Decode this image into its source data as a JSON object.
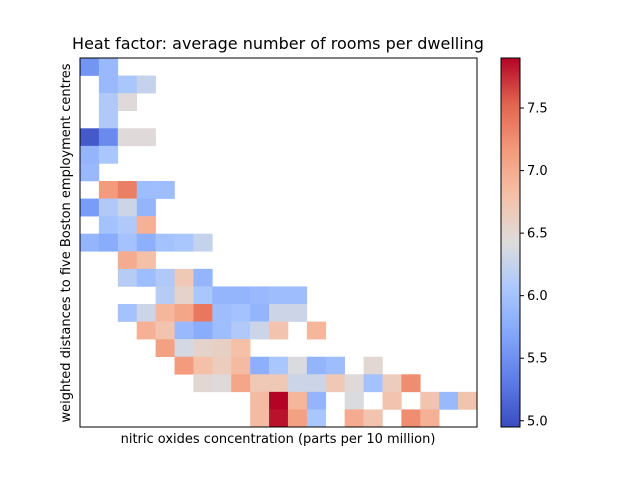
{
  "chart_data": {
    "type": "heatmap",
    "title": "Heat factor: average number of rooms per dwelling",
    "xlabel": "nitric oxides concentration (parts per 10 million)",
    "ylabel": "weighted distances to five Boston employment centres",
    "colormap": "coolwarm",
    "colorbar": {
      "vmin": 4.95,
      "vmax": 7.9,
      "ticks": [
        5.0,
        5.5,
        6.0,
        6.5,
        7.0,
        7.5
      ],
      "tick_labels": [
        "5.0",
        "5.5",
        "6.0",
        "6.5",
        "7.0",
        "7.5"
      ]
    },
    "grid_size": {
      "cols": 21,
      "rows": 21
    },
    "cells": [
      [
        0,
        0,
        5.55
      ],
      [
        1,
        0,
        5.9
      ],
      [
        1,
        1,
        5.9
      ],
      [
        2,
        1,
        6.05
      ],
      [
        3,
        1,
        6.25
      ],
      [
        1,
        2,
        6.1
      ],
      [
        2,
        2,
        6.45
      ],
      [
        1,
        3,
        6.1
      ],
      [
        0,
        4,
        5.05
      ],
      [
        1,
        4,
        5.45
      ],
      [
        2,
        4,
        6.45
      ],
      [
        3,
        4,
        6.45
      ],
      [
        0,
        5,
        5.85
      ],
      [
        1,
        5,
        6.05
      ],
      [
        0,
        6,
        5.9
      ],
      [
        1,
        7,
        7.15
      ],
      [
        2,
        7,
        7.35
      ],
      [
        3,
        7,
        5.95
      ],
      [
        4,
        7,
        5.95
      ],
      [
        0,
        8,
        5.6
      ],
      [
        1,
        8,
        6.1
      ],
      [
        2,
        8,
        6.3
      ],
      [
        3,
        8,
        5.85
      ],
      [
        1,
        9,
        6.0
      ],
      [
        2,
        9,
        6.1
      ],
      [
        3,
        9,
        6.95
      ],
      [
        0,
        10,
        5.85
      ],
      [
        1,
        10,
        5.75
      ],
      [
        2,
        10,
        6.0
      ],
      [
        3,
        10,
        5.8
      ],
      [
        4,
        10,
        6.0
      ],
      [
        5,
        10,
        6.05
      ],
      [
        6,
        10,
        6.25
      ],
      [
        2,
        11,
        7.0
      ],
      [
        3,
        11,
        6.8
      ],
      [
        2,
        12,
        6.15
      ],
      [
        3,
        12,
        5.95
      ],
      [
        4,
        12,
        6.1
      ],
      [
        5,
        12,
        6.7
      ],
      [
        6,
        12,
        5.85
      ],
      [
        4,
        13,
        6.15
      ],
      [
        5,
        13,
        6.55
      ],
      [
        6,
        13,
        6.05
      ],
      [
        7,
        13,
        5.85
      ],
      [
        8,
        13,
        5.85
      ],
      [
        9,
        13,
        5.9
      ],
      [
        10,
        13,
        5.95
      ],
      [
        11,
        13,
        5.95
      ],
      [
        2,
        14,
        6.0
      ],
      [
        3,
        14,
        6.3
      ],
      [
        4,
        14,
        6.9
      ],
      [
        5,
        14,
        7.05
      ],
      [
        6,
        14,
        7.4
      ],
      [
        7,
        14,
        5.95
      ],
      [
        8,
        14,
        6.0
      ],
      [
        9,
        14,
        5.85
      ],
      [
        10,
        14,
        6.3
      ],
      [
        11,
        14,
        6.3
      ],
      [
        3,
        15,
        6.95
      ],
      [
        4,
        15,
        6.75
      ],
      [
        5,
        15,
        5.9
      ],
      [
        6,
        15,
        5.75
      ],
      [
        7,
        15,
        5.95
      ],
      [
        8,
        15,
        6.1
      ],
      [
        9,
        15,
        6.3
      ],
      [
        10,
        15,
        6.75
      ],
      [
        12,
        15,
        6.9
      ],
      [
        4,
        16,
        7.1
      ],
      [
        5,
        16,
        6.35
      ],
      [
        6,
        16,
        6.55
      ],
      [
        7,
        16,
        6.6
      ],
      [
        8,
        16,
        6.8
      ],
      [
        5,
        17,
        7.15
      ],
      [
        6,
        17,
        6.8
      ],
      [
        7,
        17,
        6.65
      ],
      [
        8,
        17,
        6.85
      ],
      [
        9,
        17,
        5.8
      ],
      [
        10,
        17,
        6.05
      ],
      [
        11,
        17,
        6.4
      ],
      [
        12,
        17,
        5.85
      ],
      [
        13,
        17,
        5.95
      ],
      [
        15,
        17,
        6.5
      ],
      [
        6,
        18,
        6.5
      ],
      [
        7,
        18,
        6.45
      ],
      [
        8,
        18,
        7.05
      ],
      [
        9,
        18,
        6.7
      ],
      [
        10,
        18,
        6.7
      ],
      [
        11,
        18,
        6.3
      ],
      [
        12,
        18,
        6.3
      ],
      [
        13,
        18,
        6.7
      ],
      [
        14,
        18,
        6.45
      ],
      [
        15,
        18,
        6.0
      ],
      [
        16,
        18,
        6.65
      ],
      [
        17,
        18,
        7.25
      ],
      [
        9,
        19,
        6.85
      ],
      [
        10,
        19,
        7.9
      ],
      [
        11,
        19,
        6.9
      ],
      [
        12,
        19,
        5.85
      ],
      [
        14,
        19,
        6.4
      ],
      [
        16,
        19,
        6.75
      ],
      [
        18,
        19,
        6.75
      ],
      [
        19,
        19,
        5.9
      ],
      [
        20,
        19,
        6.75
      ],
      [
        9,
        20,
        6.85
      ],
      [
        10,
        20,
        7.85
      ],
      [
        11,
        20,
        7.1
      ],
      [
        12,
        20,
        6.05
      ],
      [
        14,
        20,
        7.0
      ],
      [
        15,
        20,
        6.75
      ],
      [
        17,
        20,
        7.25
      ],
      [
        18,
        20,
        6.95
      ]
    ]
  }
}
